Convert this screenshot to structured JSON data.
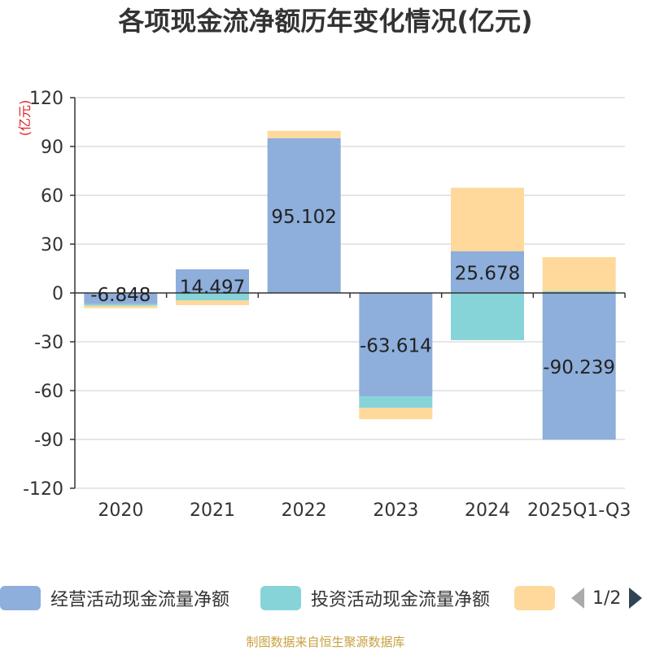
{
  "chart_data": {
    "type": "bar",
    "stacked": true,
    "title": "各项现金流净额历年变化情况(亿元)",
    "unit_label": "(亿元)",
    "categories": [
      "2020",
      "2021",
      "2022",
      "2023",
      "2024",
      "2025Q1-Q3"
    ],
    "ylim": [
      -120,
      120
    ],
    "yticks": [
      "120",
      "90",
      "60",
      "30",
      "0",
      "-30",
      "-60",
      "-90",
      "-120"
    ],
    "grid": true,
    "legend_position": "bottom",
    "series": [
      {
        "name": "经营活动现金流量净额",
        "color": "#8eaedb",
        "values": [
          -6.848,
          14.497,
          95.102,
          -63.614,
          25.678,
          -90.239
        ],
        "labels": [
          "-6.848",
          "14.497",
          "95.102",
          "-63.614",
          "25.678",
          "-90.239"
        ]
      },
      {
        "name": "投资活动现金流量净额",
        "color": "#86d4d8",
        "values": [
          -1.0,
          -4.5,
          0.0,
          -7.0,
          -29.0,
          1.0
        ]
      },
      {
        "name": "",
        "color": "#fed99b",
        "values": [
          -1.5,
          -3.0,
          4.5,
          -7.0,
          39.0,
          21.0
        ]
      }
    ]
  },
  "legend": {
    "items": [
      {
        "label": "经营活动现金流量净额",
        "color": "#8eaedb"
      },
      {
        "label": "投资活动现金流量净额",
        "color": "#86d4d8"
      },
      {
        "label": "",
        "color": "#fed99b"
      }
    ],
    "page": "1/2"
  },
  "footer": {
    "source": "制图数据来自恒生聚源数据库"
  }
}
